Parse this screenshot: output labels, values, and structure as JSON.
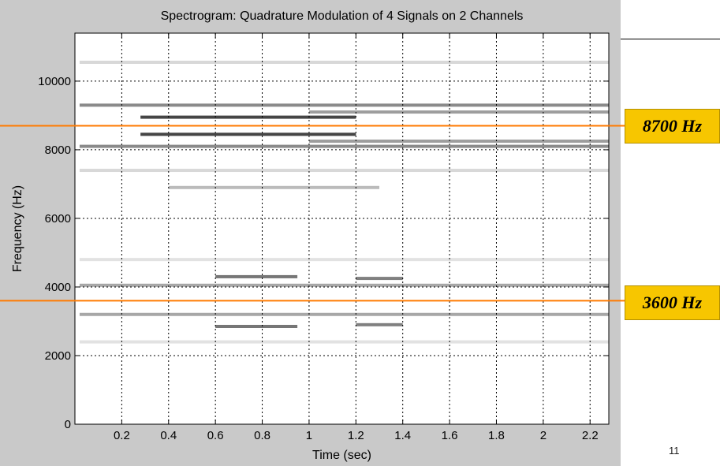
{
  "chart_data": {
    "type": "heatmap",
    "title": "Spectrogram: Quadrature Modulation of 4 Signals on 2 Channels",
    "xlabel": "Time (sec)",
    "ylabel": "Frequency (Hz)",
    "xlim": [
      0,
      2.28
    ],
    "ylim": [
      0,
      11400
    ],
    "x_ticks": [
      0.2,
      0.4,
      0.6,
      0.8,
      1,
      1.2,
      1.4,
      1.6,
      1.8,
      2,
      2.2
    ],
    "x_tick_labels": [
      "0.2",
      "0.4",
      "0.6",
      "0.8",
      "1",
      "1.2",
      "1.4",
      "1.6",
      "1.8",
      "2",
      "2.2"
    ],
    "y_ticks": [
      0,
      2000,
      4000,
      6000,
      8000,
      10000
    ],
    "y_tick_labels": [
      "0",
      "2000",
      "4000",
      "6000",
      "8000",
      "10000"
    ],
    "grid": true,
    "colormap": "grayscale (white = low, black = high)",
    "bands": [
      {
        "t_start": 0.02,
        "t_end": 2.28,
        "freq": 9300,
        "intensity": 0.6
      },
      {
        "t_start": 0.02,
        "t_end": 2.28,
        "freq": 8100,
        "intensity": 0.6
      },
      {
        "t_start": 0.28,
        "t_end": 1.2,
        "freq": 8950,
        "intensity": 0.95
      },
      {
        "t_start": 0.28,
        "t_end": 1.2,
        "freq": 8450,
        "intensity": 0.95
      },
      {
        "t_start": 1.0,
        "t_end": 2.28,
        "freq": 9100,
        "intensity": 0.5
      },
      {
        "t_start": 1.0,
        "t_end": 2.28,
        "freq": 8250,
        "intensity": 0.5
      },
      {
        "t_start": 0.02,
        "t_end": 2.28,
        "freq": 4050,
        "intensity": 0.45
      },
      {
        "t_start": 0.02,
        "t_end": 2.28,
        "freq": 3200,
        "intensity": 0.45
      },
      {
        "t_start": 0.6,
        "t_end": 0.95,
        "freq": 4300,
        "intensity": 0.7
      },
      {
        "t_start": 0.6,
        "t_end": 0.95,
        "freq": 2850,
        "intensity": 0.7
      },
      {
        "t_start": 1.2,
        "t_end": 1.4,
        "freq": 4250,
        "intensity": 0.65
      },
      {
        "t_start": 1.2,
        "t_end": 1.4,
        "freq": 2900,
        "intensity": 0.65
      },
      {
        "t_start": 0.02,
        "t_end": 2.28,
        "freq": 10550,
        "intensity": 0.2
      },
      {
        "t_start": 0.02,
        "t_end": 2.28,
        "freq": 7400,
        "intensity": 0.2
      },
      {
        "t_start": 0.4,
        "t_end": 1.3,
        "freq": 6900,
        "intensity": 0.35
      },
      {
        "t_start": 0.02,
        "t_end": 2.28,
        "freq": 4800,
        "intensity": 0.15
      },
      {
        "t_start": 0.02,
        "t_end": 2.28,
        "freq": 2400,
        "intensity": 0.15
      }
    ],
    "markers": [
      {
        "freq": 8700,
        "color": "#ff7a00",
        "label": "8700 Hz"
      },
      {
        "freq": 3600,
        "color": "#ff7a00",
        "label": "3600 Hz"
      }
    ]
  },
  "colors": {
    "figure_background": "#c9c9c9",
    "marker_line": "#ff7a00",
    "marker_label_fill": "#f7c600"
  },
  "page_number": "11"
}
